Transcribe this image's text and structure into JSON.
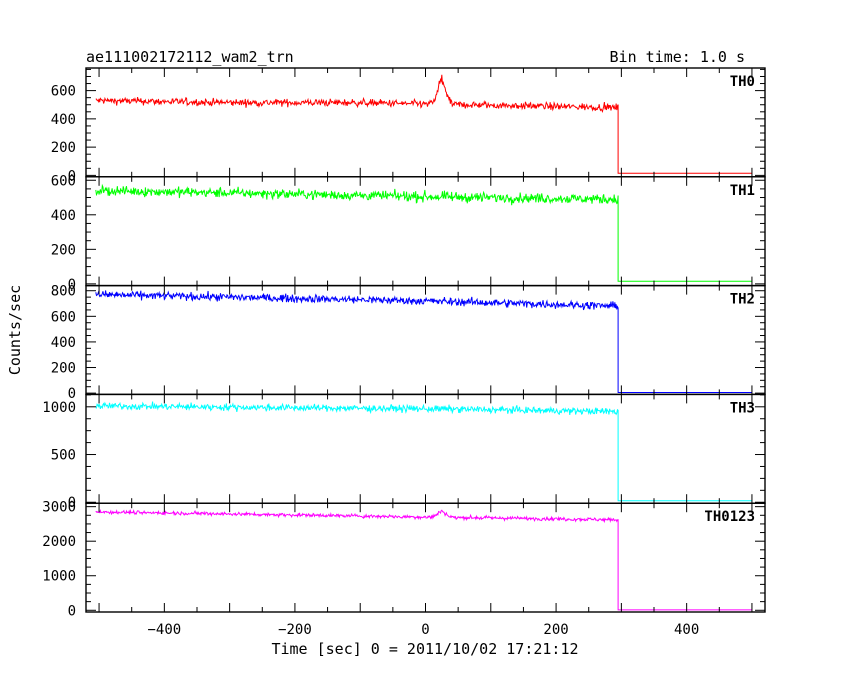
{
  "chart_data": {
    "type": "line",
    "title": "ae111002172112_wam2_trn",
    "subtitle": "Bin time: 1.0 s",
    "ylabel": "Counts/sec",
    "xlabel": "Time [sec] 0 = 2011/10/02 17:21:12",
    "xlim": [
      -520,
      520
    ],
    "x_ticks": [
      -400,
      -200,
      0,
      200,
      400
    ],
    "x_tick_labels": [
      "−400",
      "−200",
      "0",
      "200",
      "400"
    ],
    "grid": false,
    "panels": [
      {
        "name": "TH0",
        "color": "#ff0000",
        "ylim": [
          -10,
          760
        ],
        "y_ticks": [
          0,
          200,
          400,
          600
        ],
        "y_tick_labels": [
          "0",
          "200",
          "400",
          "600"
        ],
        "series": {
          "start": -505,
          "end_active": 295,
          "levels": [
            [
              -505,
              530
            ],
            [
              -300,
              515
            ],
            [
              -100,
              515
            ],
            [
              0,
              505
            ],
            [
              295,
              480
            ]
          ],
          "noise": 25,
          "after": 15,
          "features": [
            {
              "x": 25,
              "peak": 700
            }
          ]
        }
      },
      {
        "name": "TH1",
        "color": "#00ff00",
        "ylim": [
          -10,
          620
        ],
        "y_ticks": [
          0,
          200,
          400,
          600
        ],
        "y_tick_labels": [
          "0",
          "200",
          "400",
          "600"
        ],
        "series": {
          "start": -505,
          "end_active": 295,
          "levels": [
            [
              -505,
              540
            ],
            [
              -200,
              520
            ],
            [
              0,
              505
            ],
            [
              295,
              490
            ]
          ],
          "noise": 28,
          "after": 15,
          "features": []
        }
      },
      {
        "name": "TH2",
        "color": "#0000ff",
        "ylim": [
          -10,
          840
        ],
        "y_ticks": [
          0,
          200,
          400,
          600,
          800
        ],
        "y_tick_labels": [
          "0",
          "200",
          "400",
          "600",
          "800"
        ],
        "series": {
          "start": -505,
          "end_active": 295,
          "levels": [
            [
              -505,
              770
            ],
            [
              -200,
              740
            ],
            [
              0,
              720
            ],
            [
              295,
              680
            ]
          ],
          "noise": 30,
          "after": 5,
          "features": []
        }
      },
      {
        "name": "TH3",
        "color": "#00ffff",
        "ylim": [
          -10,
          1130
        ],
        "y_ticks": [
          0,
          500,
          1000
        ],
        "y_tick_labels": [
          "0",
          "500",
          "1000"
        ],
        "series": {
          "start": -505,
          "end_active": 295,
          "levels": [
            [
              -505,
              1010
            ],
            [
              -200,
              990
            ],
            [
              0,
              980
            ],
            [
              295,
              950
            ]
          ],
          "noise": 35,
          "after": 15,
          "features": []
        }
      },
      {
        "name": "TH0123",
        "color": "#ff00ff",
        "ylim": [
          -50,
          3100
        ],
        "y_ticks": [
          0,
          1000,
          2000,
          3000
        ],
        "y_tick_labels": [
          "0",
          "1000",
          "2000",
          "3000"
        ],
        "series": {
          "start": -505,
          "end_active": 295,
          "levels": [
            [
              -505,
              2850
            ],
            [
              -200,
              2760
            ],
            [
              0,
              2700
            ],
            [
              295,
              2620
            ]
          ],
          "noise": 50,
          "after": 10,
          "features": [
            {
              "x": 25,
              "peak": 2900
            }
          ]
        }
      }
    ]
  }
}
